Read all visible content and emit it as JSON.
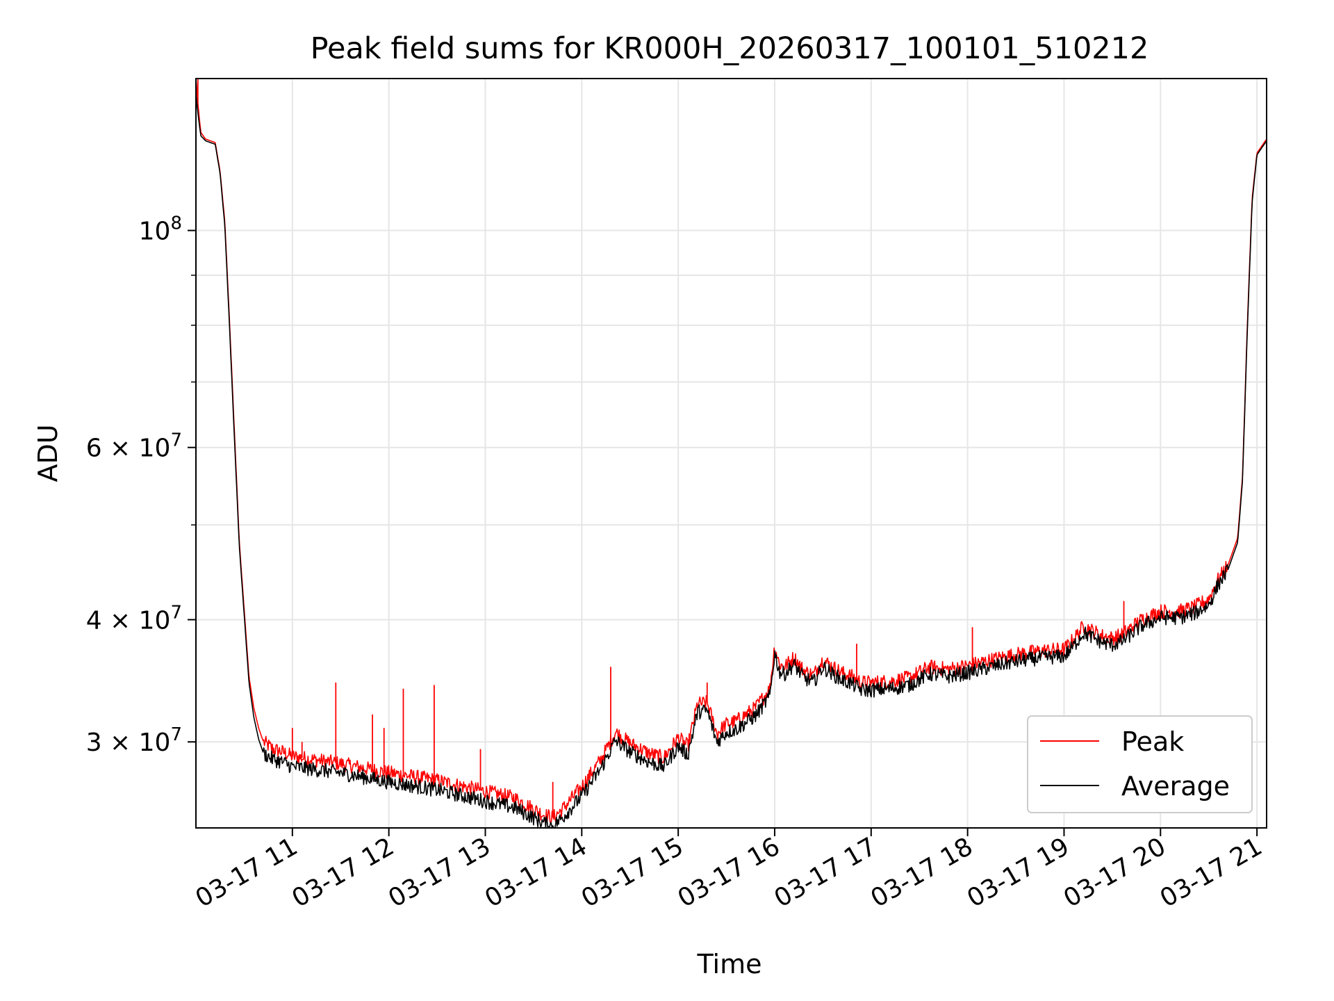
{
  "chart_data": {
    "type": "line",
    "title": "Peak field sums for KR000H_20260317_100101_510212",
    "xlabel": "Time",
    "ylabel": "ADU",
    "yscale": "log",
    "xlim": [
      10.0,
      21.1
    ],
    "ylim": [
      24500000,
      143000000
    ],
    "grid": true,
    "legend_position": "lower-right",
    "x_ticks": [
      {
        "value": 11,
        "label": "03-17 11"
      },
      {
        "value": 12,
        "label": "03-17 12"
      },
      {
        "value": 13,
        "label": "03-17 13"
      },
      {
        "value": 14,
        "label": "03-17 14"
      },
      {
        "value": 15,
        "label": "03-17 15"
      },
      {
        "value": 16,
        "label": "03-17 16"
      },
      {
        "value": 17,
        "label": "03-17 17"
      },
      {
        "value": 18,
        "label": "03-17 18"
      },
      {
        "value": 19,
        "label": "03-17 19"
      },
      {
        "value": 20,
        "label": "03-17 20"
      },
      {
        "value": 21,
        "label": "03-17 21"
      }
    ],
    "y_major_ticks": [
      {
        "value": 100000000,
        "base": "10",
        "exp": "8"
      },
      {
        "value": 60000000,
        "base": "6 × 10",
        "exp": "7"
      },
      {
        "value": 40000000,
        "base": "4 × 10",
        "exp": "7"
      },
      {
        "value": 30000000,
        "base": "3 × 10",
        "exp": "7"
      }
    ],
    "y_minor_ticks": [
      50000000,
      70000000,
      80000000,
      90000000
    ],
    "series": [
      {
        "name": "Peak",
        "color": "#ff0000",
        "x": [
          10.0,
          10.02,
          10.05,
          10.1,
          10.2,
          10.25,
          10.3,
          10.35,
          10.4,
          10.45,
          10.5,
          10.55,
          10.6,
          10.65,
          10.7,
          10.8,
          10.9,
          11.0,
          11.5,
          12.0,
          12.5,
          13.0,
          13.3,
          13.6,
          13.7,
          13.8,
          14.0,
          14.2,
          14.35,
          14.5,
          14.7,
          14.85,
          15.0,
          15.1,
          15.2,
          15.3,
          15.4,
          15.5,
          15.6,
          15.8,
          15.95,
          16.0,
          16.05,
          16.1,
          16.2,
          16.3,
          16.4,
          16.5,
          16.6,
          16.7,
          16.8,
          16.9,
          17.0,
          17.2,
          17.4,
          17.6,
          17.8,
          18.0,
          18.2,
          18.4,
          18.6,
          18.8,
          19.0,
          19.1,
          19.2,
          19.4,
          19.5,
          19.6,
          19.8,
          20.0,
          20.2,
          20.35,
          20.5,
          20.6,
          20.7,
          20.8,
          20.85,
          20.9,
          20.95,
          21.0,
          21.05,
          21.1
        ],
        "y": [
          143000000,
          135000000,
          126000000,
          124000000,
          123000000,
          115000000,
          102000000,
          80000000,
          62000000,
          48000000,
          41000000,
          35000000,
          32500000,
          31000000,
          30000000,
          29500000,
          29300000,
          29000000,
          28500000,
          27900000,
          27400000,
          26700000,
          26300000,
          25300000,
          25100000,
          25600000,
          27000000,
          28800000,
          30700000,
          29900000,
          29200000,
          28900000,
          30300000,
          29700000,
          32800000,
          32900000,
          30600000,
          31300000,
          31500000,
          32500000,
          34000000,
          37600000,
          36000000,
          35800000,
          36600000,
          35500000,
          35100000,
          36400000,
          35800000,
          35300000,
          35000000,
          34500000,
          34500000,
          34600000,
          34900000,
          35800000,
          35600000,
          35900000,
          36300000,
          36700000,
          37000000,
          37200000,
          37300000,
          38200000,
          39400000,
          38500000,
          38300000,
          38600000,
          40000000,
          40800000,
          40800000,
          41200000,
          42000000,
          44000000,
          45500000,
          48500000,
          56000000,
          80000000,
          108000000,
          120000000,
          122000000,
          124000000
        ]
      },
      {
        "name": "Average",
        "color": "#000000",
        "x": [
          10.0,
          10.02,
          10.05,
          10.1,
          10.2,
          10.25,
          10.3,
          10.35,
          10.4,
          10.45,
          10.5,
          10.55,
          10.6,
          10.65,
          10.7,
          10.8,
          10.9,
          11.0,
          11.5,
          12.0,
          12.5,
          13.0,
          13.3,
          13.6,
          13.7,
          13.8,
          14.0,
          14.2,
          14.35,
          14.5,
          14.7,
          14.85,
          15.0,
          15.1,
          15.2,
          15.3,
          15.4,
          15.5,
          15.6,
          15.8,
          15.95,
          16.0,
          16.05,
          16.1,
          16.2,
          16.3,
          16.4,
          16.5,
          16.6,
          16.7,
          16.8,
          16.9,
          17.0,
          17.2,
          17.4,
          17.6,
          17.8,
          18.0,
          18.2,
          18.4,
          18.6,
          18.8,
          19.0,
          19.1,
          19.2,
          19.4,
          19.5,
          19.6,
          19.8,
          20.0,
          20.2,
          20.35,
          20.5,
          20.6,
          20.7,
          20.8,
          20.85,
          20.9,
          20.95,
          21.0,
          21.05,
          21.1
        ],
        "y": [
          138000000,
          132000000,
          125000000,
          123500000,
          122500000,
          114500000,
          101000000,
          79000000,
          61000000,
          47500000,
          40500000,
          34500000,
          31800000,
          30200000,
          29200000,
          28800000,
          28600000,
          28300000,
          27900000,
          27300000,
          26800000,
          26100000,
          25700000,
          24800000,
          24600000,
          25100000,
          26400000,
          28200000,
          30100000,
          29300000,
          28600000,
          28300000,
          29700000,
          29100000,
          32200000,
          32300000,
          30000000,
          30700000,
          30900000,
          31900000,
          33400000,
          37000000,
          35400000,
          35200000,
          36000000,
          34900000,
          34500000,
          35800000,
          35200000,
          34700000,
          34400000,
          33900000,
          33900000,
          34000000,
          34300000,
          35200000,
          35000000,
          35300000,
          35700000,
          36100000,
          36400000,
          36600000,
          36700000,
          37600000,
          38800000,
          37900000,
          37700000,
          38000000,
          39400000,
          40200000,
          40200000,
          40600000,
          41400000,
          43500000,
          45000000,
          48000000,
          55500000,
          79000000,
          107000000,
          119500000,
          121500000,
          123500000
        ]
      }
    ],
    "spikes": [
      {
        "x": 10.02,
        "y": 143000000
      },
      {
        "x": 11.0,
        "y": 31000000
      },
      {
        "x": 11.1,
        "y": 30000000
      },
      {
        "x": 11.45,
        "y": 34500000
      },
      {
        "x": 11.83,
        "y": 32000000
      },
      {
        "x": 11.95,
        "y": 31000000
      },
      {
        "x": 12.15,
        "y": 34000000
      },
      {
        "x": 12.47,
        "y": 34300000
      },
      {
        "x": 12.95,
        "y": 29500000
      },
      {
        "x": 13.7,
        "y": 27300000
      },
      {
        "x": 14.3,
        "y": 35800000
      },
      {
        "x": 15.3,
        "y": 34500000
      },
      {
        "x": 16.85,
        "y": 37800000
      },
      {
        "x": 18.05,
        "y": 39300000
      },
      {
        "x": 19.62,
        "y": 41800000
      }
    ]
  }
}
